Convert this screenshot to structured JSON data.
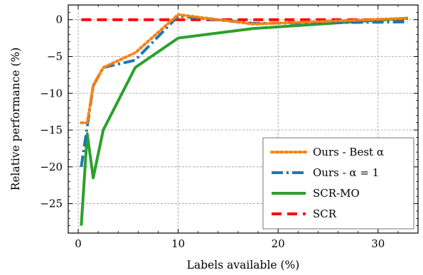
{
  "chart_data": {
    "type": "line",
    "xlabel": "Labels available (%)",
    "ylabel": "Relative performance (%)",
    "xlim": [
      -1,
      34
    ],
    "ylim": [
      -29,
      2
    ],
    "xticks": [
      0,
      10,
      20,
      30
    ],
    "yticks": [
      0,
      -5,
      -10,
      -15,
      -20,
      -25
    ],
    "grid": true,
    "legend_position": "lower-right",
    "series": [
      {
        "name": "SCR",
        "color": "#ff0000",
        "style": "dashed",
        "x": [
          0.3,
          33
        ],
        "y": [
          0,
          0
        ]
      },
      {
        "name": "SCR-MO",
        "color": "#2ca02c",
        "style": "solid",
        "x": [
          0.3,
          0.9,
          1.5,
          2.5,
          5.7,
          10,
          17.5,
          33
        ],
        "y": [
          -28,
          -15.5,
          -21.5,
          -15,
          -6.5,
          -2.5,
          -1.2,
          0.2
        ]
      },
      {
        "name": "Ours - α = 1",
        "color": "#1f77b4",
        "style": "dashdot",
        "x": [
          0.3,
          0.9,
          1.5,
          2.5,
          5.7,
          10,
          17.5,
          33
        ],
        "y": [
          -20,
          -14.5,
          -9,
          -6.5,
          -5.5,
          0.5,
          -0.5,
          -0.3
        ]
      },
      {
        "name": "Ours - Best α",
        "color": "#ff7f0e",
        "style": "dotted",
        "x": [
          0.3,
          0.9,
          1.5,
          2.5,
          5.7,
          10,
          17.5,
          33
        ],
        "y": [
          -14,
          -14,
          -9,
          -6.5,
          -4.5,
          0.7,
          -0.6,
          0.2
        ]
      }
    ],
    "legend": [
      {
        "label": "Ours - Best α",
        "color": "#ff7f0e",
        "style": "dotted"
      },
      {
        "label": "Ours - α = 1",
        "color": "#1f77b4",
        "style": "dashdot"
      },
      {
        "label": "SCR-MO",
        "color": "#2ca02c",
        "style": "solid"
      },
      {
        "label": "SCR",
        "color": "#ff0000",
        "style": "dashed"
      }
    ]
  }
}
